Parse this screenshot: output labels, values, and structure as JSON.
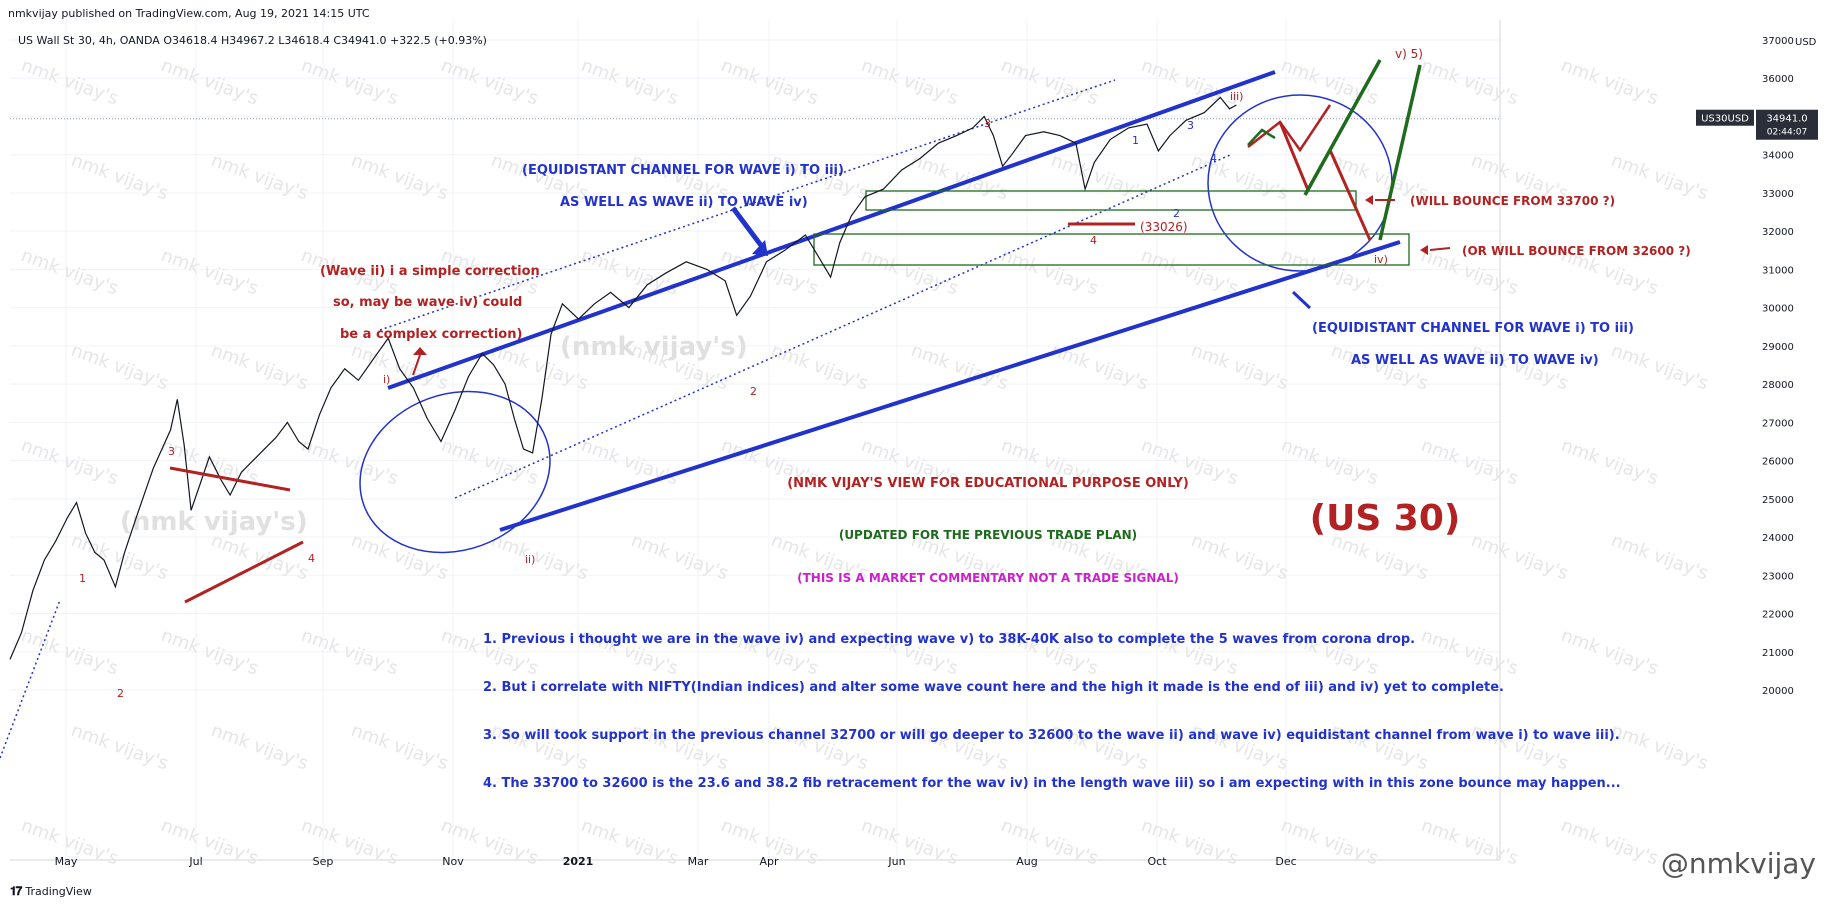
{
  "header": {
    "published": "nmkvijay published on TradingView.com, Aug 19, 2021 14:15 UTC",
    "symbol_line": "US Wall St 30, 4h, OANDA  O34618.4  H34967.2  L34618.4  C34941.0  +322.5 (+0.93%)"
  },
  "footer": {
    "brand": "TradingView",
    "signature": "@nmkvijay"
  },
  "price_axis": {
    "currency": "USD",
    "ticks": [
      "37000",
      "36000",
      "35000",
      "34000",
      "33000",
      "32000",
      "31000",
      "30000",
      "29000",
      "28000",
      "27000",
      "26000",
      "25000",
      "24000",
      "23000",
      "22000",
      "21000",
      "20000"
    ],
    "last_symbol": "US30USD",
    "last_price": "34941.0",
    "countdown": "02:44:07"
  },
  "time_axis": [
    "May",
    "Jul",
    "Sep",
    "Nov",
    "2021",
    "Mar",
    "Apr",
    "Jun",
    "Aug",
    "Oct",
    "Dec"
  ],
  "watermark": "nmk vijay's",
  "annotations": {
    "channel_note_1": [
      "(EQUIDISTANT CHANNEL FOR WAVE i) TO iii)",
      "AS WELL AS WAVE ii) TO WAVE iv)"
    ],
    "channel_note_2": [
      "(EQUIDISTANT CHANNEL FOR WAVE i) TO iii)",
      "AS WELL AS WAVE ii) TO WAVE iv)"
    ],
    "wave_note": [
      "(Wave ii) i a simple correction",
      "so, may be wave iv) could",
      "be a complex correction)"
    ],
    "bounce_1": "(WILL BOUNCE FROM 33700 ?)",
    "bounce_2": "(OR WILL BOUNCE FROM 32600 ?)",
    "low_label": "(33026)",
    "view": "(NMK VIJAY'S VIEW FOR EDUCATIONAL PURPOSE ONLY)",
    "updated": "(UPDATED FOR THE PREVIOUS TRADE PLAN)",
    "disclaimer": "(THIS IS A MARKET COMMENTARY NOT A TRADE SIGNAL)",
    "big_title": "(US 30)",
    "notes": [
      "1. Previous i thought we are in the wave iv) and expecting wave v) to 38K-40K also to complete the 5 waves from corona drop.",
      "2. But i correlate with NIFTY(Indian indices) and alter some wave count here and the high it made is the end of iii) and iv) yet to complete.",
      "3. So will took support in the previous channel 32700 or will go deeper to 32600 to the wave ii) and wave iv) equidistant channel from wave i) to wave iii).",
      "4. The  33700 to 32600 is the 23.6 and 38.2 fib retracement for the wav iv) in the length wave iii) so i am expecting with in this zone bounce may happen..."
    ],
    "wave_labels": {
      "w1": "1",
      "w2": "2",
      "w3": "3",
      "w4": "4",
      "wi": "i)",
      "wii": "ii)",
      "wiii": "iii)",
      "wiv": "iv)",
      "wv": "v) 5)",
      "sub2": "2",
      "sub3": "3",
      "sub4": "4",
      "subi1": "1",
      "subi2": "2",
      "subi3": "3",
      "subi4": "4"
    }
  },
  "chart_data": {
    "type": "line",
    "title": "",
    "xlabel": "",
    "ylabel": "",
    "ylim": [
      19400,
      37300
    ],
    "colors": {
      "price": "#131722",
      "channel": "#2233cc",
      "annotation_red": "#b22222",
      "green": "#1e6b1e",
      "magenta": "#cc22cc",
      "box": "#1e6b1e"
    },
    "series": [
      {
        "values": [
          [
            0,
            20800
          ],
          [
            10,
            21500
          ],
          [
            20,
            22600
          ],
          [
            30,
            23400
          ],
          [
            40,
            23900
          ],
          [
            50,
            24500
          ],
          [
            58,
            24900
          ],
          [
            66,
            24100
          ],
          [
            74,
            23600
          ],
          [
            82,
            23400
          ],
          [
            92,
            22700
          ],
          [
            100,
            23600
          ],
          [
            110,
            24500
          ],
          [
            125,
            25800
          ],
          [
            140,
            26800
          ],
          [
            146,
            27600
          ],
          [
            152,
            26400
          ],
          [
            158,
            24700
          ],
          [
            166,
            25400
          ],
          [
            174,
            26100
          ],
          [
            184,
            25500
          ],
          [
            192,
            25100
          ],
          [
            202,
            25700
          ],
          [
            212,
            26000
          ],
          [
            222,
            26300
          ],
          [
            232,
            26600
          ],
          [
            242,
            27000
          ],
          [
            252,
            26500
          ],
          [
            260,
            26300
          ],
          [
            270,
            27200
          ],
          [
            280,
            27900
          ],
          [
            292,
            28400
          ],
          [
            304,
            28100
          ],
          [
            318,
            28700
          ],
          [
            330,
            29200
          ],
          [
            340,
            28400
          ],
          [
            352,
            27900
          ],
          [
            364,
            27100
          ],
          [
            376,
            26500
          ],
          [
            388,
            27300
          ],
          [
            400,
            28200
          ],
          [
            412,
            28800
          ],
          [
            422,
            28500
          ],
          [
            432,
            28000
          ],
          [
            440,
            27100
          ],
          [
            448,
            26300
          ],
          [
            456,
            26200
          ],
          [
            464,
            27600
          ],
          [
            472,
            29300
          ],
          [
            482,
            30100
          ],
          [
            496,
            29700
          ],
          [
            510,
            30100
          ],
          [
            524,
            30400
          ],
          [
            540,
            30000
          ],
          [
            556,
            30600
          ],
          [
            572,
            30900
          ],
          [
            590,
            31200
          ],
          [
            608,
            31000
          ],
          [
            624,
            30700
          ],
          [
            634,
            29800
          ],
          [
            646,
            30300
          ],
          [
            660,
            31200
          ],
          [
            676,
            31500
          ],
          [
            694,
            31900
          ],
          [
            706,
            31300
          ],
          [
            716,
            30800
          ],
          [
            724,
            31700
          ],
          [
            734,
            32400
          ],
          [
            746,
            32900
          ],
          [
            762,
            33100
          ],
          [
            778,
            33600
          ],
          [
            794,
            33900
          ],
          [
            810,
            34300
          ],
          [
            826,
            34500
          ],
          [
            840,
            34700
          ],
          [
            850,
            35000
          ],
          [
            858,
            34500
          ],
          [
            866,
            33700
          ],
          [
            874,
            34000
          ],
          [
            886,
            34500
          ],
          [
            902,
            34600
          ],
          [
            916,
            34500
          ],
          [
            930,
            34300
          ],
          [
            938,
            33100
          ],
          [
            946,
            33800
          ],
          [
            960,
            34400
          ],
          [
            976,
            34700
          ],
          [
            992,
            34800
          ],
          [
            1002,
            34100
          ],
          [
            1012,
            34500
          ],
          [
            1026,
            34900
          ],
          [
            1042,
            35100
          ],
          [
            1056,
            35500
          ],
          [
            1064,
            35200
          ],
          [
            1070,
            35300
          ]
        ]
      }
    ]
  }
}
